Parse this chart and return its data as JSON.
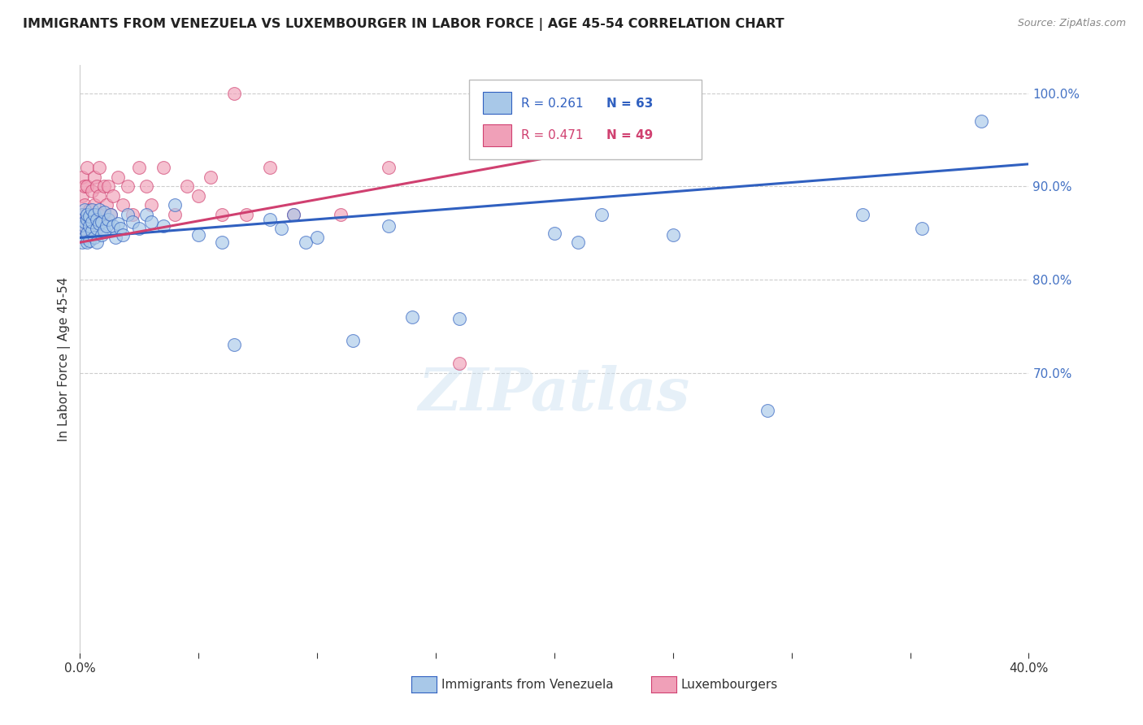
{
  "title": "IMMIGRANTS FROM VENEZUELA VS LUXEMBOURGER IN LABOR FORCE | AGE 45-54 CORRELATION CHART",
  "source": "Source: ZipAtlas.com",
  "ylabel": "In Labor Force | Age 45-54",
  "r_venezuela": 0.261,
  "n_venezuela": 63,
  "r_luxembourger": 0.471,
  "n_luxembourger": 49,
  "color_venezuela": "#a8c8e8",
  "color_luxembourger": "#f0a0b8",
  "color_venezuela_line": "#3060c0",
  "color_luxembourger_line": "#d04070",
  "color_axis_right": "#4472c4",
  "legend_venezuela": "Immigrants from Venezuela",
  "legend_luxembourger": "Luxembourgers",
  "xlim": [
    0.0,
    0.4
  ],
  "ylim": [
    0.4,
    1.03
  ],
  "venezuela_x": [
    0.001,
    0.001,
    0.001,
    0.002,
    0.002,
    0.002,
    0.002,
    0.003,
    0.003,
    0.003,
    0.003,
    0.004,
    0.004,
    0.004,
    0.005,
    0.005,
    0.005,
    0.006,
    0.006,
    0.007,
    0.007,
    0.007,
    0.008,
    0.008,
    0.009,
    0.009,
    0.01,
    0.01,
    0.011,
    0.012,
    0.013,
    0.014,
    0.015,
    0.016,
    0.017,
    0.018,
    0.02,
    0.022,
    0.025,
    0.028,
    0.03,
    0.035,
    0.04,
    0.05,
    0.06,
    0.065,
    0.08,
    0.085,
    0.09,
    0.095,
    0.1,
    0.115,
    0.13,
    0.14,
    0.16,
    0.2,
    0.21,
    0.22,
    0.25,
    0.29,
    0.33,
    0.355,
    0.38
  ],
  "venezuela_y": [
    0.855,
    0.87,
    0.84,
    0.858,
    0.862,
    0.845,
    0.875,
    0.85,
    0.865,
    0.84,
    0.87,
    0.858,
    0.842,
    0.868,
    0.852,
    0.862,
    0.875,
    0.845,
    0.87,
    0.855,
    0.865,
    0.84,
    0.86,
    0.875,
    0.848,
    0.862,
    0.852,
    0.872,
    0.858,
    0.865,
    0.87,
    0.858,
    0.845,
    0.86,
    0.855,
    0.848,
    0.87,
    0.862,
    0.855,
    0.87,
    0.862,
    0.858,
    0.88,
    0.848,
    0.84,
    0.73,
    0.865,
    0.855,
    0.87,
    0.84,
    0.845,
    0.735,
    0.858,
    0.76,
    0.758,
    0.85,
    0.84,
    0.87,
    0.848,
    0.66,
    0.87,
    0.855,
    0.97
  ],
  "luxembourger_x": [
    0.001,
    0.001,
    0.001,
    0.001,
    0.002,
    0.002,
    0.002,
    0.002,
    0.003,
    0.003,
    0.003,
    0.003,
    0.004,
    0.004,
    0.005,
    0.005,
    0.006,
    0.006,
    0.007,
    0.007,
    0.008,
    0.008,
    0.009,
    0.01,
    0.01,
    0.011,
    0.012,
    0.013,
    0.014,
    0.016,
    0.018,
    0.02,
    0.022,
    0.025,
    0.028,
    0.03,
    0.035,
    0.04,
    0.045,
    0.05,
    0.055,
    0.06,
    0.065,
    0.07,
    0.08,
    0.09,
    0.11,
    0.13,
    0.16
  ],
  "luxembourger_y": [
    0.87,
    0.89,
    0.855,
    0.91,
    0.88,
    0.9,
    0.87,
    0.855,
    0.9,
    0.87,
    0.92,
    0.855,
    0.875,
    0.86,
    0.895,
    0.87,
    0.91,
    0.88,
    0.9,
    0.87,
    0.92,
    0.89,
    0.87,
    0.9,
    0.87,
    0.88,
    0.9,
    0.87,
    0.89,
    0.91,
    0.88,
    0.9,
    0.87,
    0.92,
    0.9,
    0.88,
    0.92,
    0.87,
    0.9,
    0.89,
    0.91,
    0.87,
    1.0,
    0.87,
    0.92,
    0.87,
    0.87,
    0.92,
    0.71
  ],
  "blue_line_x": [
    0.0,
    0.4
  ],
  "blue_line_y": [
    0.845,
    0.924
  ],
  "pink_line_x": [
    0.0,
    0.25
  ],
  "pink_line_y": [
    0.84,
    0.955
  ]
}
